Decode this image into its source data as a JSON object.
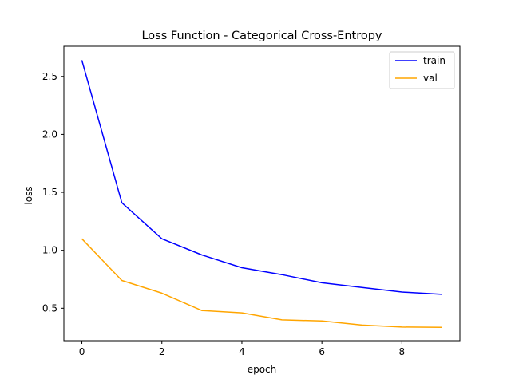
{
  "chart_data": {
    "type": "line",
    "title": "Loss Function - Categorical Cross-Entropy",
    "xlabel": "epoch",
    "ylabel": "loss",
    "x": [
      0,
      1,
      2,
      3,
      4,
      5,
      6,
      7,
      8,
      9
    ],
    "series": [
      {
        "name": "train",
        "color": "#0000ff",
        "values": [
          2.64,
          1.41,
          1.1,
          0.96,
          0.85,
          0.79,
          0.72,
          0.68,
          0.64,
          0.62
        ]
      },
      {
        "name": "val",
        "color": "#ffa500",
        "values": [
          1.1,
          0.74,
          0.63,
          0.48,
          0.46,
          0.4,
          0.39,
          0.355,
          0.338,
          0.335
        ]
      }
    ],
    "xlim": [
      -0.45,
      9.45
    ],
    "ylim": [
      0.22,
      2.76
    ],
    "xticks": [
      0,
      2,
      4,
      6,
      8
    ],
    "xtick_labels": [
      "0",
      "2",
      "4",
      "6",
      "8"
    ],
    "yticks": [
      0.5,
      1.0,
      1.5,
      2.0,
      2.5
    ],
    "ytick_labels": [
      "0.5",
      "1.0",
      "1.5",
      "2.0",
      "2.5"
    ],
    "grid": false,
    "legend_position": "upper right"
  }
}
